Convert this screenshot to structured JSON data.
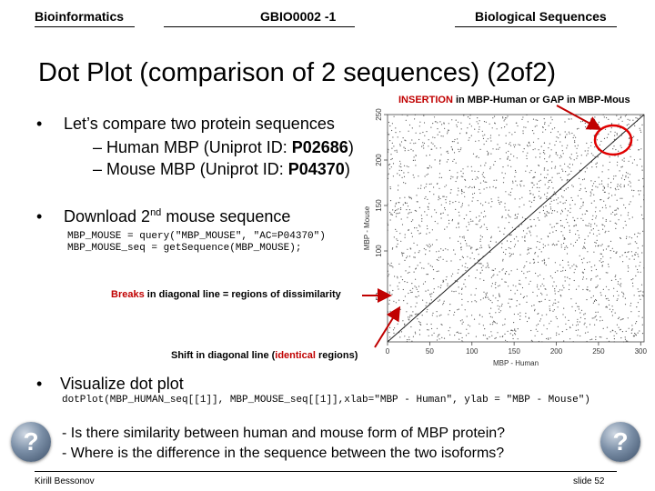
{
  "header": {
    "left": "Bioinformatics",
    "center": "GBIO0002 -1",
    "right": "Biological Sequences"
  },
  "title": "Dot Plot (comparison of 2 sequences) (2of2)",
  "bullets": {
    "b1": "Let’s compare two protein sequences",
    "b1_sub1_prefix": "– Human MBP (Uniprot ID: ",
    "b1_sub1_id": "P02686",
    "b1_sub1_suffix": ")",
    "b1_sub2_prefix": "– Mouse MBP (Uniprot ID: ",
    "b1_sub2_id": "P04370",
    "b1_sub2_suffix": ")",
    "b2_prefix": "Download 2",
    "b2_sup": "nd",
    "b2_suffix": " mouse sequence",
    "code1": "MBP_MOUSE = query(\"MBP_MOUSE\", \"AC=P04370\")",
    "code2": "MBP_MOUSE_seq = getSequence(MBP_MOUSE);",
    "b3": "Visualize dot plot",
    "code3": "dotPlot(MBP_HUMAN_seq[[1]], MBP_MOUSE_seq[[1]],xlab=\"MBP - Human\", ylab = \"MBP - Mouse\")"
  },
  "annotations": {
    "insertion_red": "INSERTION",
    "insertion_rest": " in MBP-Human or GAP in MBP-Mous",
    "breaks_red": "Breaks",
    "breaks_rest": " in diagonal line = regions of dissimilarity",
    "shift_prefix": "Shift in diagonal line (",
    "shift_red": "identical",
    "shift_suffix": " regions)"
  },
  "questions": {
    "q1": "- Is there similarity between human and mouse form of MBP protein?",
    "q2": "- Where is the difference in the sequence between the two isoforms?",
    "glyph": "?"
  },
  "footer": {
    "author": "Kirill Bessonov",
    "slide": "slide 52"
  },
  "chart_data": {
    "type": "scatter",
    "xlabel": "MBP - Human",
    "ylabel": "MBP - Mouse",
    "xlim": [
      0,
      304
    ],
    "ylim": [
      0,
      250
    ],
    "xticks": [
      0,
      50,
      100,
      150,
      200,
      250,
      300
    ],
    "yticks": [
      50,
      100,
      150,
      200,
      250
    ],
    "yticks_shown": [
      "50",
      "100",
      "150",
      "200",
      "250"
    ],
    "diagonal": {
      "x0": 0,
      "y0": 0,
      "x1": 304,
      "y1": 250
    },
    "seed": 7,
    "points": []
  },
  "colors": {
    "accent_red": "#c00000",
    "arrow_red": "#c00000",
    "highlight_circle": "#e00000"
  }
}
